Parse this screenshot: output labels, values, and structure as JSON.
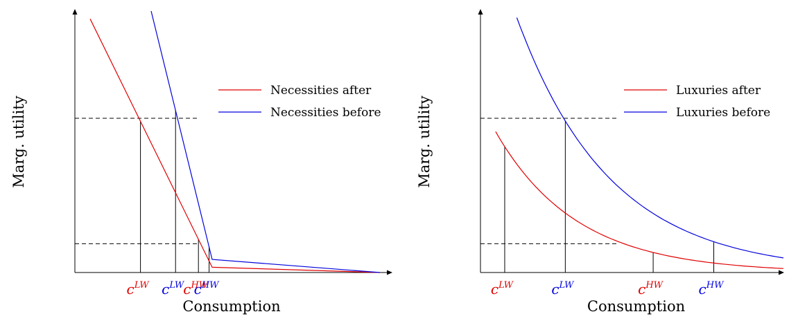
{
  "chart_data": [
    {
      "type": "line",
      "ylabel": "Marg. utility",
      "xlabel": "Consumption",
      "legend_position": "top-right",
      "colors": {
        "after": "#e00000",
        "before": "#0000dd"
      },
      "series": [
        {
          "name": "Necessities after",
          "color": "#e00000",
          "points": [
            [
              0.05,
              0.97
            ],
            [
              0.45,
              0.02
            ],
            [
              1.0,
              0.0
            ]
          ]
        },
        {
          "name": "Necessities before",
          "color": "#0000dd",
          "points": [
            [
              0.25,
              1.0
            ],
            [
              0.45,
              0.05
            ],
            [
              1.0,
              0.0
            ]
          ]
        }
      ],
      "reference_levels": [
        0.59,
        0.11
      ],
      "ticks": [
        {
          "label": "c",
          "sup": "LW",
          "x": 0.215,
          "color": "#e00000",
          "series": "Necessities after"
        },
        {
          "label": "c",
          "sup": "LW",
          "x": 0.33,
          "color": "#0000dd",
          "series": "Necessities before"
        },
        {
          "label": "c",
          "sup": "HW",
          "x": 0.405,
          "color": "#e00000",
          "series": "Necessities after"
        },
        {
          "label": "c",
          "sup": "HW",
          "x": 0.44,
          "color": "#0000dd",
          "series": "Necessities before"
        }
      ]
    },
    {
      "type": "line",
      "ylabel": "Marg. utility",
      "xlabel": "Consumption",
      "legend_position": "top-right",
      "colors": {
        "after": "#e00000",
        "before": "#0000dd"
      },
      "series": [
        {
          "name": "Luxuries after",
          "color": "#e00000",
          "curve": {
            "a": 0.65,
            "b": 3.75,
            "x_start": 0.05,
            "x_end": 1.0
          }
        },
        {
          "name": "Luxuries before",
          "color": "#0000dd",
          "curve": {
            "a": 1.44,
            "b": 3.25,
            "x_start": 0.12,
            "x_end": 1.0
          }
        }
      ],
      "reference_levels": [
        0.59,
        0.11
      ],
      "ticks": [
        {
          "label": "c",
          "sup": "LW",
          "x": 0.08,
          "color": "#e00000",
          "series": "Luxuries after"
        },
        {
          "label": "c",
          "sup": "LW",
          "x": 0.28,
          "color": "#0000dd",
          "series": "Luxuries before"
        },
        {
          "label": "c",
          "sup": "HW",
          "x": 0.57,
          "color": "#e00000",
          "series": "Luxuries after"
        },
        {
          "label": "c",
          "sup": "HW",
          "x": 0.77,
          "color": "#0000dd",
          "series": "Luxuries before"
        }
      ]
    }
  ]
}
